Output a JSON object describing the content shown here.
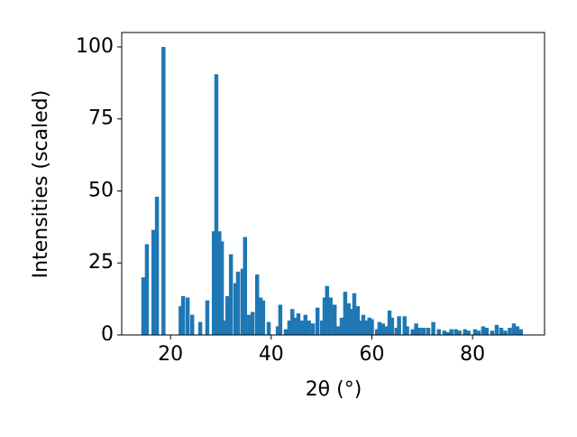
{
  "chart_data": {
    "type": "bar",
    "x_label": "2θ (°)",
    "y_label": "Intensities (scaled)",
    "color": "#1f77b4",
    "x": [
      14.6,
      15.3,
      16.6,
      17.3,
      18.6,
      22.0,
      22.5,
      23.4,
      24.3,
      25.9,
      27.3,
      28.6,
      29.1,
      29.7,
      30.2,
      30.7,
      31.3,
      32.0,
      32.9,
      33.4,
      34.3,
      34.8,
      35.6,
      36.3,
      37.2,
      37.9,
      38.4,
      39.5,
      41.3,
      41.8,
      42.9,
      43.6,
      44.2,
      44.9,
      45.4,
      46.1,
      46.8,
      47.5,
      48.3,
      49.2,
      50.1,
      50.6,
      51.1,
      51.8,
      52.6,
      53.3,
      54.0,
      54.7,
      55.4,
      56.0,
      56.5,
      57.2,
      57.7,
      58.3,
      59.0,
      59.5,
      60.0,
      61.0,
      61.5,
      62.2,
      62.8,
      63.5,
      64.0,
      64.9,
      65.4,
      66.5,
      67.0,
      68.1,
      68.8,
      69.5,
      70.3,
      71.2,
      72.2,
      73.3,
      74.4,
      75.1,
      75.8,
      76.7,
      77.4,
      78.5,
      79.2,
      80.5,
      81.2,
      82.1,
      82.8,
      83.9,
      84.8,
      85.7,
      86.5,
      87.4,
      88.2,
      88.9,
      89.6
    ],
    "values": [
      20,
      31.5,
      36.5,
      48,
      100,
      10,
      13.5,
      13,
      7,
      4.5,
      12,
      36,
      90.5,
      36,
      32.5,
      5,
      13.5,
      28,
      18,
      22,
      23,
      34,
      7,
      8,
      21,
      13,
      12,
      4.5,
      3,
      10.5,
      2,
      5,
      9,
      6,
      7.5,
      5,
      7,
      5,
      4,
      9.5,
      5,
      13,
      17,
      13,
      10.5,
      3,
      6,
      15,
      11,
      9,
      14.5,
      10,
      5,
      7,
      5,
      6,
      5.5,
      2,
      4.5,
      4,
      3,
      8.5,
      6,
      2.5,
      6.5,
      6.5,
      3,
      2,
      4,
      2.5,
      2.5,
      2.5,
      4.5,
      2,
      1.5,
      1,
      2,
      2,
      1.5,
      2,
      1.5,
      2,
      1.5,
      3,
      2.5,
      1.5,
      3.5,
      2.5,
      1.5,
      2.5,
      4,
      3,
      2
    ],
    "xlim": [
      10.3,
      94.3
    ],
    "ylim": [
      0,
      105
    ],
    "xticks": [
      20,
      40,
      60,
      80
    ],
    "yticks": [
      0,
      25,
      50,
      75,
      100
    ],
    "grid": false
  }
}
